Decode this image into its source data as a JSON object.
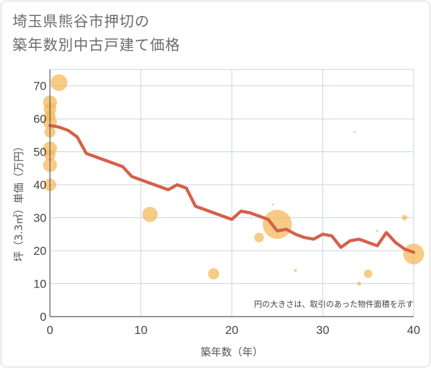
{
  "title_lines": [
    "埼玉県熊谷市押切の",
    "築年数別中古戸建て価格"
  ],
  "chart_data": {
    "type": "scatter",
    "xlabel": "築年数（年）",
    "ylabel": "坪（3.3㎡）単価（万円）",
    "xlim": [
      0,
      40
    ],
    "ylim": [
      0,
      75
    ],
    "x_ticks": [
      0,
      10,
      20,
      30,
      40
    ],
    "y_ticks": [
      0,
      10,
      20,
      30,
      40,
      50,
      60,
      70
    ],
    "grid": true,
    "note": "円の大きさは、取引のあった物件面積を示す",
    "colors": {
      "bubble": "#f4b757",
      "line": "#d4614a",
      "grid": "#c9d3e0",
      "axis": "#555555"
    },
    "bubbles": [
      {
        "x": 0,
        "y": 65,
        "size": 10
      },
      {
        "x": 0,
        "y": 63,
        "size": 9
      },
      {
        "x": 0,
        "y": 61,
        "size": 8
      },
      {
        "x": 0,
        "y": 59,
        "size": 10
      },
      {
        "x": 0,
        "y": 56,
        "size": 8
      },
      {
        "x": 0,
        "y": 51,
        "size": 10
      },
      {
        "x": 0,
        "y": 49,
        "size": 8
      },
      {
        "x": 0,
        "y": 46,
        "size": 10
      },
      {
        "x": 0,
        "y": 40,
        "size": 9
      },
      {
        "x": 1,
        "y": 71,
        "size": 12
      },
      {
        "x": 11,
        "y": 31,
        "size": 11
      },
      {
        "x": 18,
        "y": 13,
        "size": 8
      },
      {
        "x": 23,
        "y": 24,
        "size": 7
      },
      {
        "x": 24.5,
        "y": 34,
        "size": 1.5
      },
      {
        "x": 25,
        "y": 28,
        "size": 21
      },
      {
        "x": 27,
        "y": 14,
        "size": 2
      },
      {
        "x": 33.5,
        "y": 56,
        "size": 1.5
      },
      {
        "x": 34,
        "y": 10,
        "size": 3
      },
      {
        "x": 35,
        "y": 13,
        "size": 6
      },
      {
        "x": 36,
        "y": 26,
        "size": 1.5
      },
      {
        "x": 39,
        "y": 30,
        "size": 4
      },
      {
        "x": 40,
        "y": 19,
        "size": 15
      }
    ],
    "series": [
      {
        "x": [
          0,
          1,
          2,
          3,
          4,
          5,
          6,
          7,
          8,
          9,
          10,
          11,
          12,
          13,
          14,
          15,
          16,
          17,
          18,
          19,
          20,
          21,
          22,
          23,
          24,
          25,
          26,
          27,
          28,
          29,
          30,
          31,
          32,
          33,
          34,
          35,
          36,
          37,
          38,
          39,
          40
        ],
        "values": [
          58,
          57.5,
          56.5,
          54.5,
          49.5,
          48.5,
          47.5,
          46.5,
          45.5,
          42.5,
          41.5,
          40.5,
          39.5,
          38.5,
          40,
          39,
          33.5,
          32.5,
          31.5,
          30.5,
          29.5,
          32,
          31.5,
          30.5,
          29.5,
          26,
          26.5,
          25,
          24,
          23.5,
          25,
          24.5,
          21,
          23,
          23.5,
          22.5,
          21.5,
          25.5,
          22.5,
          20.5,
          19.5
        ]
      }
    ]
  }
}
